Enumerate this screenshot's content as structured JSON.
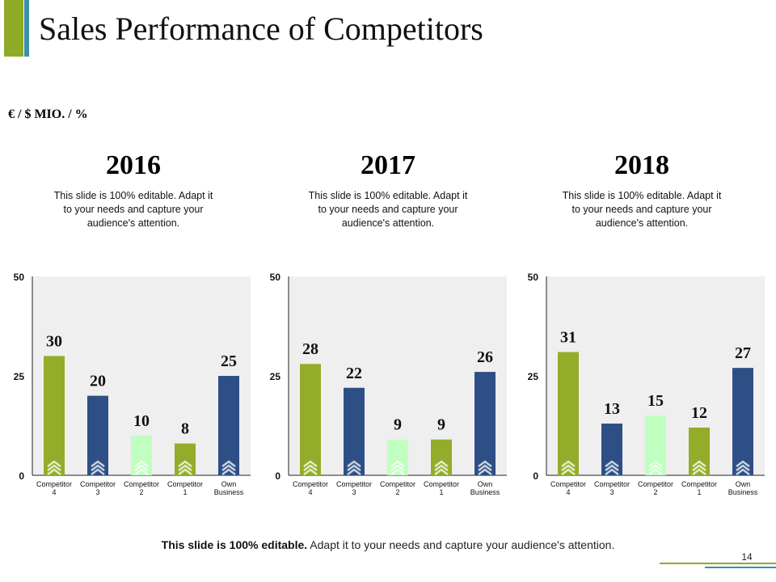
{
  "slide": {
    "title": "Sales Performance of Competitors",
    "unit_label": "€ / $ MIO.  / %",
    "footer_bold": "This slide is 100% editable.",
    "footer_rest": " Adapt it to your needs and capture your audience's attention.",
    "page_number": "14"
  },
  "panels": [
    {
      "year": "2016",
      "description": "This slide is 100% editable. Adapt it to your needs and capture your audience's attention."
    },
    {
      "year": "2017",
      "description": "This slide is 100% editable. Adapt it to your needs and capture your audience's attention."
    },
    {
      "year": "2018",
      "description": "This slide is 100% editable. Adapt it to your needs and capture your audience's attention."
    }
  ],
  "colors": {
    "competitor_4": "#93ad2a",
    "competitor_3": "#2e4f86",
    "competitor_2": "#bfffbf",
    "competitor_1": "#93ad2a",
    "own_business": "#2e4f86",
    "plot_background": "#efefef",
    "accent_green": "#8faa27",
    "accent_blue": "#3c8fa6"
  },
  "chart_data": [
    {
      "type": "bar",
      "title": "2016",
      "categories": [
        "Competitor 4",
        "Competitor 3",
        "Competitor 2",
        "Competitor 1",
        "Own Business"
      ],
      "values": [
        30,
        20,
        10,
        8,
        25
      ],
      "ylim": [
        0,
        50
      ],
      "yticks": [
        "0",
        "25",
        "50"
      ],
      "grid": false
    },
    {
      "type": "bar",
      "title": "2017",
      "categories": [
        "Competitor 4",
        "Competitor 3",
        "Competitor 2",
        "Competitor 1",
        "Own Business"
      ],
      "values": [
        28,
        22,
        9,
        9,
        26
      ],
      "ylim": [
        0,
        50
      ],
      "yticks": [
        "0",
        "25",
        "50"
      ],
      "grid": false
    },
    {
      "type": "bar",
      "title": "2018",
      "categories": [
        "Competitor 4",
        "Competitor 3",
        "Competitor 2",
        "Competitor 1",
        "Own Business"
      ],
      "values": [
        31,
        13,
        15,
        12,
        27
      ],
      "ylim": [
        0,
        50
      ],
      "yticks": [
        "0",
        "25",
        "50"
      ],
      "grid": false
    }
  ]
}
